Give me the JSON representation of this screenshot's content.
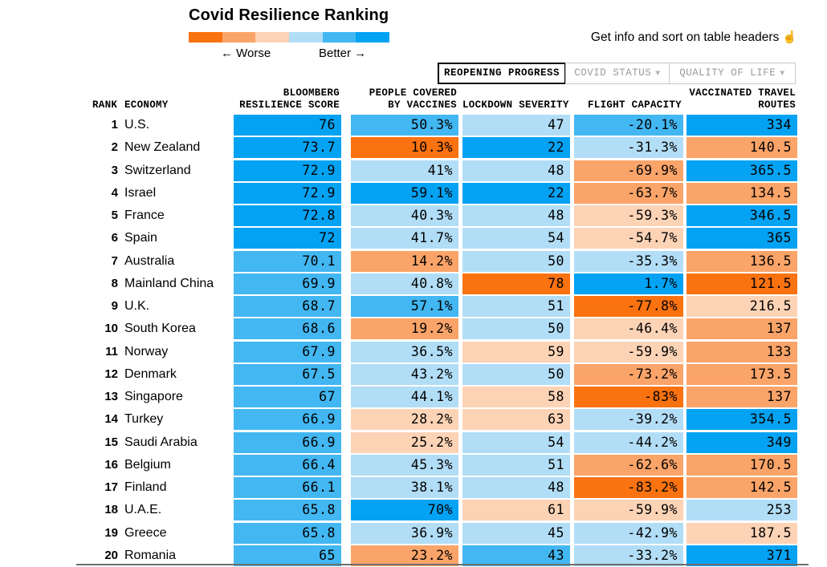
{
  "title": "Covid Resilience Ranking",
  "legend": {
    "worse_label": "← Worse",
    "better_label": "Better →",
    "colors": [
      "#fb7210",
      "#fba469",
      "#fdd3b6",
      "#b2ddf6",
      "#42b7f2",
      "#04a2f3"
    ]
  },
  "info_note": {
    "text": "Get info and sort on table headers",
    "icon": "☝"
  },
  "tabs": [
    {
      "label": "REOPENING PROGRESS",
      "active": true
    },
    {
      "label": "COVID STATUS",
      "active": false,
      "dropdown_icon": "▼"
    },
    {
      "label": "QUALITY OF LIFE",
      "active": false,
      "dropdown_icon": "▼"
    }
  ],
  "palette": {
    "o3": "#fb7210",
    "o2": "#fba469",
    "o1": "#fdd3b6",
    "b1": "#b2ddf6",
    "b2": "#42b7f2",
    "b3": "#04a2f3"
  },
  "table": {
    "headers": {
      "rank": "RANK",
      "economy": "ECONOMY",
      "score_l1": "BLOOMBERG",
      "score_l2": "RESILIENCE SCORE",
      "vaccines_l1": "PEOPLE COVERED",
      "vaccines_l2": "BY VACCINES",
      "lockdown": "LOCKDOWN SEVERITY",
      "flight": "FLIGHT CAPACITY",
      "routes_l1": "VACCINATED TRAVEL",
      "routes_l2": "ROUTES"
    },
    "rows": [
      {
        "rank": "1",
        "economy": "U.S.",
        "cells": [
          {
            "v": "76",
            "c": "b3"
          },
          {
            "v": "50.3%",
            "c": "b2"
          },
          {
            "v": "47",
            "c": "b1"
          },
          {
            "v": "-20.1%",
            "c": "b2"
          },
          {
            "v": "334",
            "c": "b3"
          }
        ]
      },
      {
        "rank": "2",
        "economy": "New Zealand",
        "cells": [
          {
            "v": "73.7",
            "c": "b3"
          },
          {
            "v": "10.3%",
            "c": "o3"
          },
          {
            "v": "22",
            "c": "b3"
          },
          {
            "v": "-31.3%",
            "c": "b1"
          },
          {
            "v": "140.5",
            "c": "o2"
          }
        ]
      },
      {
        "rank": "3",
        "economy": "Switzerland",
        "cells": [
          {
            "v": "72.9",
            "c": "b3"
          },
          {
            "v": "41%",
            "c": "b1"
          },
          {
            "v": "48",
            "c": "b1"
          },
          {
            "v": "-69.9%",
            "c": "o2"
          },
          {
            "v": "365.5",
            "c": "b3"
          }
        ]
      },
      {
        "rank": "4",
        "economy": "Israel",
        "cells": [
          {
            "v": "72.9",
            "c": "b3"
          },
          {
            "v": "59.1%",
            "c": "b3"
          },
          {
            "v": "22",
            "c": "b3"
          },
          {
            "v": "-63.7%",
            "c": "o2"
          },
          {
            "v": "134.5",
            "c": "o2"
          }
        ]
      },
      {
        "rank": "5",
        "economy": "France",
        "cells": [
          {
            "v": "72.8",
            "c": "b3"
          },
          {
            "v": "40.3%",
            "c": "b1"
          },
          {
            "v": "48",
            "c": "b1"
          },
          {
            "v": "-59.3%",
            "c": "o1"
          },
          {
            "v": "346.5",
            "c": "b3"
          }
        ]
      },
      {
        "rank": "6",
        "economy": "Spain",
        "cells": [
          {
            "v": "72",
            "c": "b3"
          },
          {
            "v": "41.7%",
            "c": "b1"
          },
          {
            "v": "54",
            "c": "b1"
          },
          {
            "v": "-54.7%",
            "c": "o1"
          },
          {
            "v": "365",
            "c": "b3"
          }
        ]
      },
      {
        "rank": "7",
        "economy": "Australia",
        "cells": [
          {
            "v": "70.1",
            "c": "b2"
          },
          {
            "v": "14.2%",
            "c": "o2"
          },
          {
            "v": "50",
            "c": "b1"
          },
          {
            "v": "-35.3%",
            "c": "b1"
          },
          {
            "v": "136.5",
            "c": "o2"
          }
        ]
      },
      {
        "rank": "8",
        "economy": "Mainland China",
        "cells": [
          {
            "v": "69.9",
            "c": "b2"
          },
          {
            "v": "40.8%",
            "c": "b1"
          },
          {
            "v": "78",
            "c": "o3"
          },
          {
            "v": "1.7%",
            "c": "b3"
          },
          {
            "v": "121.5",
            "c": "o3"
          }
        ]
      },
      {
        "rank": "9",
        "economy": "U.K.",
        "cells": [
          {
            "v": "68.7",
            "c": "b2"
          },
          {
            "v": "57.1%",
            "c": "b2"
          },
          {
            "v": "51",
            "c": "b1"
          },
          {
            "v": "-77.8%",
            "c": "o3"
          },
          {
            "v": "216.5",
            "c": "o1"
          }
        ]
      },
      {
        "rank": "10",
        "economy": "South Korea",
        "cells": [
          {
            "v": "68.6",
            "c": "b2"
          },
          {
            "v": "19.2%",
            "c": "o2"
          },
          {
            "v": "50",
            "c": "b1"
          },
          {
            "v": "-46.4%",
            "c": "o1"
          },
          {
            "v": "137",
            "c": "o2"
          }
        ]
      },
      {
        "rank": "11",
        "economy": "Norway",
        "cells": [
          {
            "v": "67.9",
            "c": "b2"
          },
          {
            "v": "36.5%",
            "c": "b1"
          },
          {
            "v": "59",
            "c": "o1"
          },
          {
            "v": "-59.9%",
            "c": "o1"
          },
          {
            "v": "133",
            "c": "o2"
          }
        ]
      },
      {
        "rank": "12",
        "economy": "Denmark",
        "cells": [
          {
            "v": "67.5",
            "c": "b2"
          },
          {
            "v": "43.2%",
            "c": "b1"
          },
          {
            "v": "50",
            "c": "b1"
          },
          {
            "v": "-73.2%",
            "c": "o2"
          },
          {
            "v": "173.5",
            "c": "o2"
          }
        ]
      },
      {
        "rank": "13",
        "economy": "Singapore",
        "cells": [
          {
            "v": "67",
            "c": "b2"
          },
          {
            "v": "44.1%",
            "c": "b1"
          },
          {
            "v": "58",
            "c": "o1"
          },
          {
            "v": "-83%",
            "c": "o3"
          },
          {
            "v": "137",
            "c": "o2"
          }
        ]
      },
      {
        "rank": "14",
        "economy": "Turkey",
        "cells": [
          {
            "v": "66.9",
            "c": "b2"
          },
          {
            "v": "28.2%",
            "c": "o1"
          },
          {
            "v": "63",
            "c": "o1"
          },
          {
            "v": "-39.2%",
            "c": "b1"
          },
          {
            "v": "354.5",
            "c": "b3"
          }
        ]
      },
      {
        "rank": "15",
        "economy": "Saudi Arabia",
        "cells": [
          {
            "v": "66.9",
            "c": "b2"
          },
          {
            "v": "25.2%",
            "c": "o1"
          },
          {
            "v": "54",
            "c": "b1"
          },
          {
            "v": "-44.2%",
            "c": "b1"
          },
          {
            "v": "349",
            "c": "b3"
          }
        ]
      },
      {
        "rank": "16",
        "economy": "Belgium",
        "cells": [
          {
            "v": "66.4",
            "c": "b2"
          },
          {
            "v": "45.3%",
            "c": "b1"
          },
          {
            "v": "51",
            "c": "b1"
          },
          {
            "v": "-62.6%",
            "c": "o2"
          },
          {
            "v": "170.5",
            "c": "o2"
          }
        ]
      },
      {
        "rank": "17",
        "economy": "Finland",
        "cells": [
          {
            "v": "66.1",
            "c": "b2"
          },
          {
            "v": "38.1%",
            "c": "b1"
          },
          {
            "v": "48",
            "c": "b1"
          },
          {
            "v": "-83.2%",
            "c": "o3"
          },
          {
            "v": "142.5",
            "c": "o2"
          }
        ]
      },
      {
        "rank": "18",
        "economy": "U.A.E.",
        "cells": [
          {
            "v": "65.8",
            "c": "b2"
          },
          {
            "v": "70%",
            "c": "b3"
          },
          {
            "v": "61",
            "c": "o1"
          },
          {
            "v": "-59.9%",
            "c": "o1"
          },
          {
            "v": "253",
            "c": "b1"
          }
        ]
      },
      {
        "rank": "19",
        "economy": "Greece",
        "cells": [
          {
            "v": "65.8",
            "c": "b2"
          },
          {
            "v": "36.9%",
            "c": "b1"
          },
          {
            "v": "45",
            "c": "b1"
          },
          {
            "v": "-42.9%",
            "c": "b1"
          },
          {
            "v": "187.5",
            "c": "o1"
          }
        ]
      },
      {
        "rank": "20",
        "economy": "Romania",
        "cells": [
          {
            "v": "65",
            "c": "b2"
          },
          {
            "v": "23.2%",
            "c": "o2"
          },
          {
            "v": "43",
            "c": "b2"
          },
          {
            "v": "-33.2%",
            "c": "b1"
          },
          {
            "v": "371",
            "c": "b3"
          }
        ]
      }
    ]
  },
  "chart_data": {
    "type": "table",
    "title": "Covid Resilience Ranking",
    "legend": {
      "worse": "← Worse",
      "better": "Better →",
      "scale_colors": [
        "#fb7210",
        "#fba469",
        "#fdd3b6",
        "#b2ddf6",
        "#42b7f2",
        "#04a2f3"
      ],
      "scale_note": "discrete 6-step diverging scale, orange = worse, blue = better"
    },
    "columns": [
      "Rank",
      "Economy",
      "Bloomberg Resilience Score",
      "People Covered by Vaccines",
      "Lockdown Severity",
      "Flight Capacity",
      "Vaccinated Travel Routes"
    ],
    "rows": [
      [
        1,
        "U.S.",
        76,
        "50.3%",
        47,
        "-20.1%",
        334
      ],
      [
        2,
        "New Zealand",
        73.7,
        "10.3%",
        22,
        "-31.3%",
        140.5
      ],
      [
        3,
        "Switzerland",
        72.9,
        "41%",
        48,
        "-69.9%",
        365.5
      ],
      [
        4,
        "Israel",
        72.9,
        "59.1%",
        22,
        "-63.7%",
        134.5
      ],
      [
        5,
        "France",
        72.8,
        "40.3%",
        48,
        "-59.3%",
        346.5
      ],
      [
        6,
        "Spain",
        72,
        "41.7%",
        54,
        "-54.7%",
        365
      ],
      [
        7,
        "Australia",
        70.1,
        "14.2%",
        50,
        "-35.3%",
        136.5
      ],
      [
        8,
        "Mainland China",
        69.9,
        "40.8%",
        78,
        "1.7%",
        121.5
      ],
      [
        9,
        "U.K.",
        68.7,
        "57.1%",
        51,
        "-77.8%",
        216.5
      ],
      [
        10,
        "South Korea",
        68.6,
        "19.2%",
        50,
        "-46.4%",
        137
      ],
      [
        11,
        "Norway",
        67.9,
        "36.5%",
        59,
        "-59.9%",
        133
      ],
      [
        12,
        "Denmark",
        67.5,
        "43.2%",
        50,
        "-73.2%",
        173.5
      ],
      [
        13,
        "Singapore",
        67,
        "44.1%",
        58,
        "-83%",
        137
      ],
      [
        14,
        "Turkey",
        66.9,
        "28.2%",
        63,
        "-39.2%",
        354.5
      ],
      [
        15,
        "Saudi Arabia",
        66.9,
        "25.2%",
        54,
        "-44.2%",
        349
      ],
      [
        16,
        "Belgium",
        66.4,
        "45.3%",
        51,
        "-62.6%",
        170.5
      ],
      [
        17,
        "Finland",
        66.1,
        "38.1%",
        48,
        "-83.2%",
        142.5
      ],
      [
        18,
        "U.A.E.",
        65.8,
        "70%",
        61,
        "-59.9%",
        253
      ],
      [
        19,
        "Greece",
        65.8,
        "36.9%",
        45,
        "-42.9%",
        187.5
      ],
      [
        20,
        "Romania",
        65,
        "23.2%",
        43,
        "-33.2%",
        371
      ]
    ]
  }
}
